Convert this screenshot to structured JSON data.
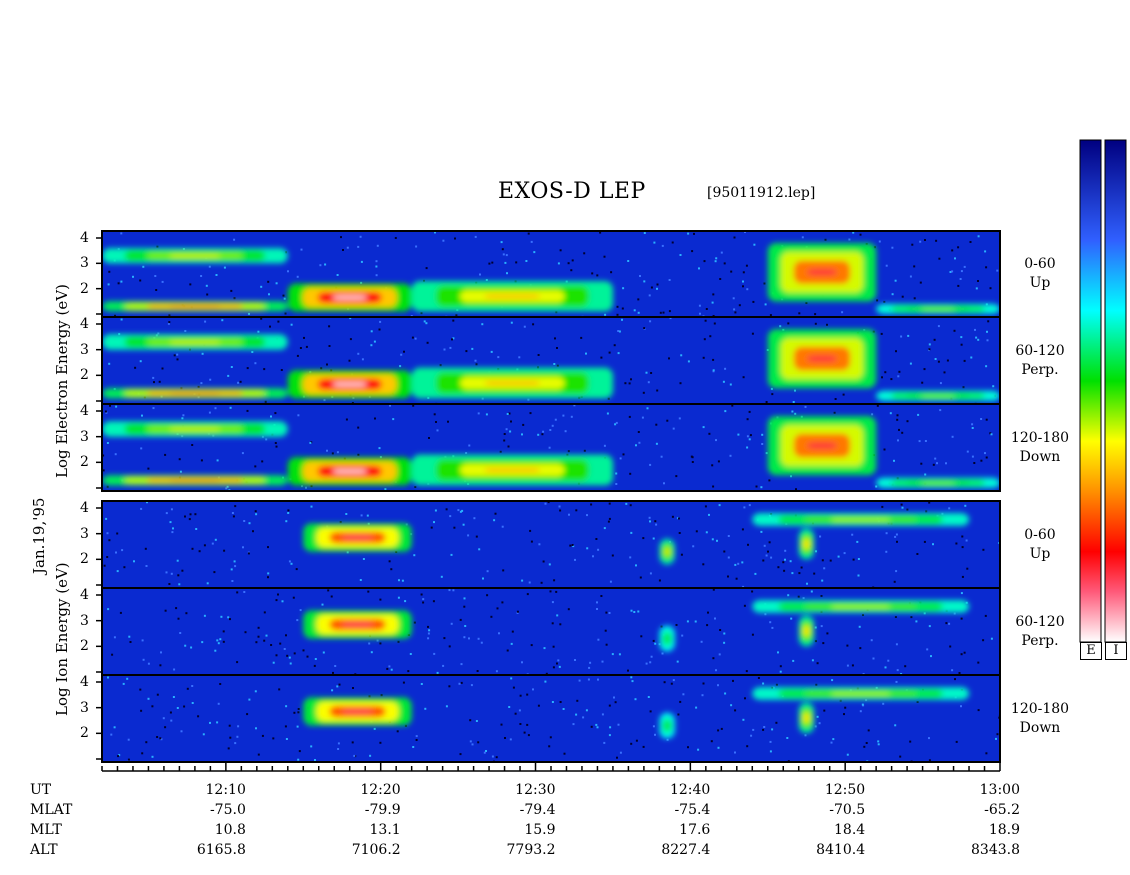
{
  "header": {
    "title": "EXOS-D LEP",
    "file": "[95011912.lep]"
  },
  "side_labels": {
    "date": "Jan.19,'95",
    "electron": "Log   Electron   Energy (eV)",
    "ion": "Log   Ion   Energy (eV)"
  },
  "colorbar": {
    "electron_label": "E",
    "ion_label": "I"
  },
  "colors": {
    "background": "#0a2ad0",
    "frame": "#000000"
  },
  "chart_data": {
    "type": "heatmap",
    "title": "EXOS-D LEP",
    "x_range": [
      "12:02",
      "13:00"
    ],
    "y_range_log_eV": [
      1,
      4
    ],
    "y_ticks": [
      "1",
      "2",
      "3",
      "4"
    ],
    "panels": [
      {
        "species": "Electron",
        "pitch": "0-60",
        "dir": "Up"
      },
      {
        "species": "Electron",
        "pitch": "60-120",
        "dir": "Perp."
      },
      {
        "species": "Electron",
        "pitch": "120-180",
        "dir": "Down"
      },
      {
        "species": "Ion",
        "pitch": "0-60",
        "dir": "Up"
      },
      {
        "species": "Ion",
        "pitch": "60-120",
        "dir": "Perp."
      },
      {
        "species": "Ion",
        "pitch": "120-180",
        "dir": "Down"
      }
    ],
    "x_axis": {
      "row_labels": [
        "UT",
        "MLAT",
        "MLT",
        "ALT"
      ],
      "columns": [
        {
          "UT": "12:10",
          "MLAT": "-75.0",
          "MLT": "10.8",
          "ALT": "6165.8"
        },
        {
          "UT": "12:20",
          "MLAT": "-79.9",
          "MLT": "13.1",
          "ALT": "7106.2"
        },
        {
          "UT": "12:30",
          "MLAT": "-79.4",
          "MLT": "15.9",
          "ALT": "7793.2"
        },
        {
          "UT": "12:40",
          "MLAT": "-75.4",
          "MLT": "17.6",
          "ALT": "8227.4"
        },
        {
          "UT": "12:50",
          "MLAT": "-70.5",
          "MLT": "18.4",
          "ALT": "8410.4"
        },
        {
          "UT": "13:00",
          "MLAT": "-65.2",
          "MLT": "18.9",
          "ALT": "8343.8"
        }
      ]
    },
    "features": {
      "electron": [
        {
          "ut": [
            "12:02",
            "12:14"
          ],
          "log_e": [
            3.0,
            3.6
          ],
          "level": 0.45
        },
        {
          "ut": [
            "12:02",
            "12:14"
          ],
          "log_e": [
            1.1,
            1.5
          ],
          "level": 0.75
        },
        {
          "ut": [
            "12:14",
            "12:22"
          ],
          "log_e": [
            1.1,
            2.2
          ],
          "level": 1.0
        },
        {
          "ut": [
            "12:22",
            "12:35"
          ],
          "log_e": [
            1.1,
            2.3
          ],
          "level": 0.55
        },
        {
          "ut": [
            "12:45",
            "12:52"
          ],
          "log_e": [
            1.5,
            3.8
          ],
          "level": 0.8
        },
        {
          "ut": [
            "12:52",
            "13:00"
          ],
          "log_e": [
            1.0,
            1.4
          ],
          "level": 0.35
        }
      ],
      "ion": [
        {
          "ut": [
            "12:15",
            "12:22"
          ],
          "log_e": [
            2.3,
            3.4
          ],
          "level": 0.85
        },
        {
          "ut": [
            "12:38",
            "12:39"
          ],
          "log_e": [
            1.8,
            2.8
          ],
          "level": 0.5
        },
        {
          "ut": [
            "12:47",
            "12:48"
          ],
          "log_e": [
            2.0,
            3.2
          ],
          "level": 0.55
        },
        {
          "ut": [
            "12:44",
            "12:58"
          ],
          "log_e": [
            3.3,
            3.8
          ],
          "level": 0.4
        }
      ]
    }
  }
}
